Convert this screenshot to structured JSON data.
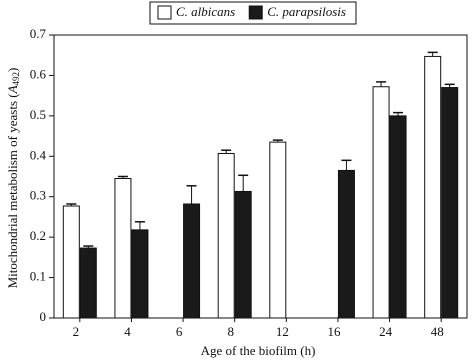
{
  "chart_data": {
    "type": "bar",
    "xlabel": "Age of the biofilm (h)",
    "ylabel": [
      "Mitochondrial metabolism of yeasts (",
      "A",
      "492",
      ")"
    ],
    "categories": [
      "2",
      "4",
      "6",
      "8",
      "12",
      "16",
      "24",
      "48"
    ],
    "series": [
      {
        "name": "C. albicans",
        "color": "#ffffff",
        "values": [
          0.277,
          0.345,
          null,
          0.407,
          0.435,
          null,
          0.572,
          0.647
        ],
        "errors": [
          0.005,
          0.005,
          null,
          0.008,
          0.005,
          null,
          0.012,
          0.01
        ]
      },
      {
        "name": "C. parapsilosis",
        "color": "#1a1a1a",
        "values": [
          0.173,
          0.218,
          0.282,
          0.313,
          null,
          0.365,
          0.5,
          0.57
        ],
        "errors": [
          0.005,
          0.02,
          0.045,
          0.04,
          null,
          0.025,
          0.008,
          0.008
        ]
      }
    ],
    "ylim": [
      0,
      0.7
    ],
    "yticks": [
      0,
      0.1,
      0.2,
      0.3,
      0.4,
      0.5,
      0.6,
      0.7
    ],
    "legend": "top"
  }
}
